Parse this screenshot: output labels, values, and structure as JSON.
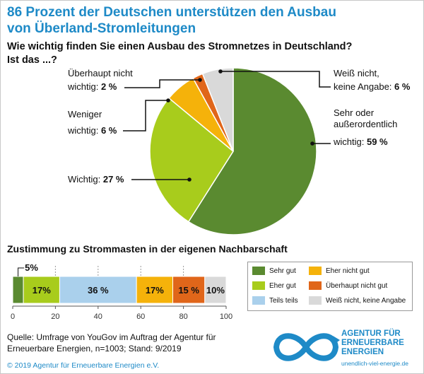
{
  "header": {
    "title_line1": "86 Prozent der Deutschen unterstützen den Ausbau",
    "title_line2": "von Überland-Stromleitungen",
    "subtitle_line1": "Wie wichtig finden Sie einen Ausbau des Stromnetzes in Deutschland?",
    "subtitle_line2": "Ist das ...?"
  },
  "colors": {
    "title": "#1e8ac7",
    "sehr_gut": "#5a8a30",
    "eher_gut": "#a8cc1c",
    "teils": "#aad0ec",
    "eher_nicht": "#f5b20a",
    "ueberhaupt_nicht": "#e0661a",
    "weiss_nicht": "#d9d9d9"
  },
  "chart_data": [
    {
      "type": "pie",
      "title": "Wie wichtig finden Sie einen Ausbau des Stromnetzes in Deutschland? Ist das ...?",
      "slices": [
        {
          "label_lines": [
            "Sehr oder",
            "außerordentlich",
            "wichtig: 59 %"
          ],
          "value": 59,
          "color": "#5a8a30"
        },
        {
          "label_lines": [
            "Wichtig: 27 %"
          ],
          "value": 27,
          "color": "#a8cc1c"
        },
        {
          "label_lines": [
            "Weniger",
            "wichtig: 6 %"
          ],
          "value": 6,
          "color": "#f5b20a"
        },
        {
          "label_lines": [
            "Überhaupt nicht",
            "wichtig: 2 %"
          ],
          "value": 2,
          "color": "#e0661a"
        },
        {
          "label_lines": [
            "Weiß nicht,",
            "keine Angabe: 6 %"
          ],
          "value": 6,
          "color": "#d9d9d9"
        }
      ]
    },
    {
      "type": "bar",
      "orientation": "horizontal-stacked",
      "title": "Zustimmung zu Strommasten in der eigenen Nachbarschaft",
      "xlim": [
        0,
        100
      ],
      "xticks": [
        "0",
        "20",
        "40",
        "60",
        "80",
        "100"
      ],
      "series": [
        {
          "name": "Sehr gut",
          "value": 5,
          "label": "5%",
          "color": "#5a8a30"
        },
        {
          "name": "Eher gut",
          "value": 17,
          "label": "17%",
          "color": "#a8cc1c"
        },
        {
          "name": "Teils teils",
          "value": 36,
          "label": "36 %",
          "color": "#aad0ec"
        },
        {
          "name": "Eher nicht gut",
          "value": 17,
          "label": "17%",
          "color": "#f5b20a"
        },
        {
          "name": "Überhaupt nicht gut",
          "value": 15,
          "label": "15 %",
          "color": "#e0661a"
        },
        {
          "name": "Weiß nicht, keine Angabe",
          "value": 10,
          "label": "10%",
          "color": "#d9d9d9"
        }
      ]
    }
  ],
  "legend": {
    "items": [
      {
        "label": "Sehr gut",
        "color": "#5a8a30"
      },
      {
        "label": "Eher gut",
        "color": "#a8cc1c"
      },
      {
        "label": "Teils teils",
        "color": "#aad0ec"
      },
      {
        "label": "Eher nicht gut",
        "color": "#f5b20a"
      },
      {
        "label": "Überhaupt nicht gut",
        "color": "#e0661a"
      },
      {
        "label": "Weiß nicht, keine Angabe",
        "color": "#d9d9d9"
      }
    ]
  },
  "footer": {
    "source_line1": "Quelle: Umfrage von YouGov im Auftrag der Agentur für",
    "source_line2": "Erneuerbare Energien, n=1003; Stand: 9/2019",
    "copyright": "© 2019 Agentur für Erneuerbare Energien e.V.",
    "logo_line1": "AGENTUR FÜR",
    "logo_line2": "ERNEUERBARE",
    "logo_line3": "ENERGIEN",
    "logo_url": "unendlich-viel-energie.de"
  }
}
